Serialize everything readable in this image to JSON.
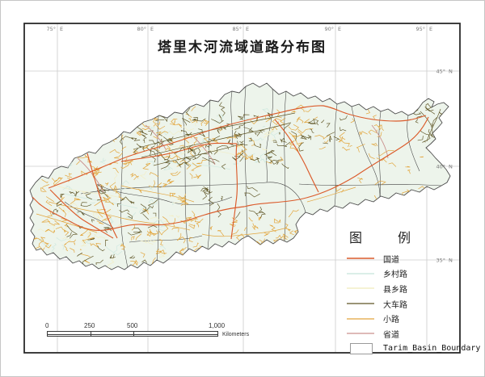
{
  "page": {
    "title": "塔里木河流域道路分布图"
  },
  "graticule": {
    "meridians": [
      {
        "deg": "75°",
        "hemi": "E"
      },
      {
        "deg": "80°",
        "hemi": "E"
      },
      {
        "deg": "85°",
        "hemi": "E"
      },
      {
        "deg": "90°",
        "hemi": "E"
      },
      {
        "deg": "95°",
        "hemi": "E"
      }
    ],
    "parallels": [
      {
        "deg": "45°",
        "hemi": "N"
      },
      {
        "deg": "40°",
        "hemi": "N"
      },
      {
        "deg": "35°",
        "hemi": "N"
      }
    ]
  },
  "legend": {
    "title": "图　例",
    "items": [
      {
        "label": "国道",
        "color": "#DB5B2B",
        "type": "line"
      },
      {
        "label": "乡村路",
        "color": "#CFE9E0",
        "type": "line"
      },
      {
        "label": "县乡路",
        "color": "#F2EEC6",
        "type": "line"
      },
      {
        "label": "大车路",
        "color": "#5E5424",
        "type": "line"
      },
      {
        "label": "小路",
        "color": "#E2A53C",
        "type": "line"
      },
      {
        "label": "省道",
        "color": "#C9908D",
        "type": "line"
      },
      {
        "label": "Tarim_Basin_Boundary",
        "color": "#9a9a9a",
        "fill": "#ffffff",
        "type": "polygon"
      }
    ]
  },
  "scale_bar": {
    "ticks": [
      "0",
      "250",
      "500",
      "1,000"
    ],
    "unit": "Kilometers"
  },
  "map": {
    "basin_fill": "#EDF4EB",
    "basin_outline": "#4D4D4D",
    "county_boundary_color": "#3F3F3F",
    "grid_color": "#CCCCCC",
    "frame_color": "#2A2A2A"
  }
}
